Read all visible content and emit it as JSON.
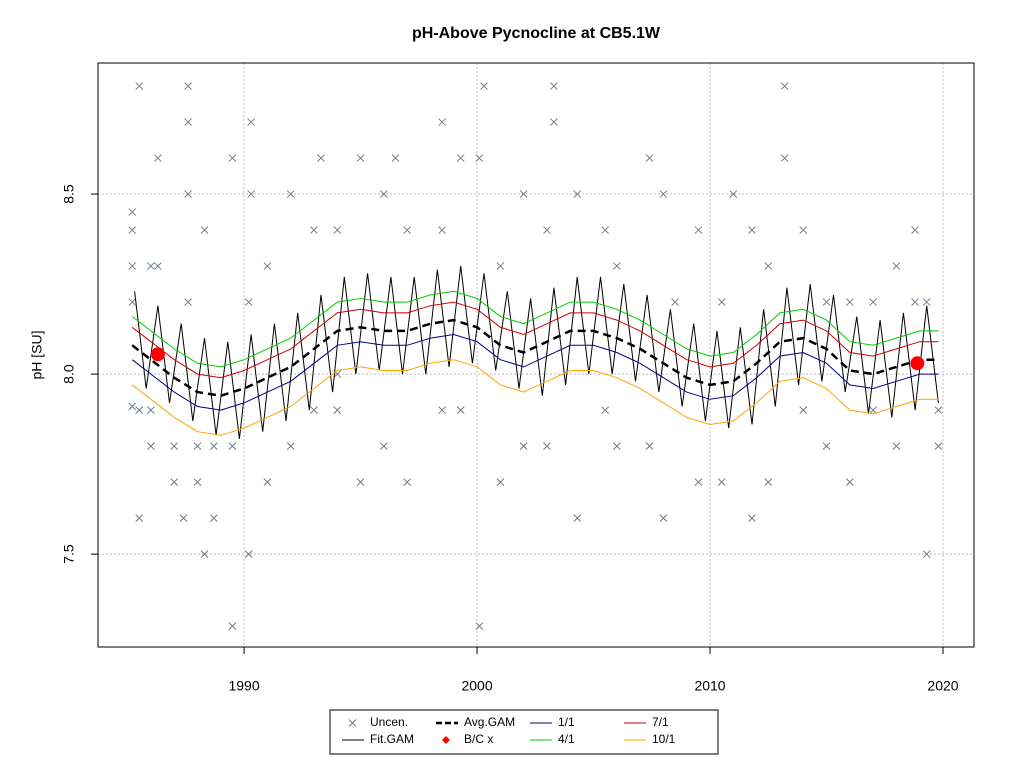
{
  "chart_data": {
    "type": "line",
    "title": "pH-Above Pycnocline at CB5.1W",
    "y_label": "pH [SU]",
    "xlim": [
      1983.73,
      2021.33
    ],
    "ylim": [
      7.242,
      8.864
    ],
    "xticks": [
      1990,
      2000,
      2010,
      2020
    ],
    "yticks": [
      7.5,
      {
        "value": 8,
        "label": "8.0"
      },
      8.5
    ],
    "grid": true,
    "legend": "bottom",
    "series": [
      {
        "name": "Uncen.",
        "color": "#6c7b8b",
        "kind": "points",
        "marker": "x",
        "x": [
          1985.2,
          1985.2,
          1985.2,
          1985.2,
          1985.2,
          1985.5,
          1985.5,
          1985.5,
          1986,
          1986,
          1986,
          1986.3,
          1986.3,
          1987,
          1987,
          1987.4,
          1987.6,
          1987.6,
          1987.6,
          1987.6,
          1988,
          1988,
          1988.3,
          1988.3,
          1988.7,
          1988.7,
          1989.5,
          1989.5,
          1989.5,
          1990.2,
          1990.2,
          1990.3,
          1990.3,
          1991,
          1991,
          1992,
          1992,
          1993,
          1993,
          1993.3,
          1994,
          1994,
          1994,
          1995,
          1995,
          1996,
          1996,
          1996.5,
          1997,
          1997,
          1998.5,
          1998.5,
          1998.5,
          1999.3,
          1999.3,
          2000.1,
          2000.1,
          2000.3,
          2001,
          2001,
          2002,
          2002,
          2003,
          2003,
          2003.3,
          2003.3,
          2004.3,
          2004.3,
          2005.5,
          2005.5,
          2006,
          2006,
          2007.4,
          2007.4,
          2008,
          2008,
          2008.5,
          2009.5,
          2009.5,
          2010.5,
          2010.5,
          2011,
          2011.8,
          2011.8,
          2012.5,
          2012.5,
          2013.2,
          2013.2,
          2014,
          2014,
          2015,
          2015,
          2016,
          2016,
          2017,
          2017,
          2018,
          2018,
          2018.8,
          2018.8,
          2019.3,
          2019.3,
          2019.8,
          2019.8
        ],
        "values": [
          8.45,
          8.4,
          8.3,
          8.2,
          7.91,
          8.8,
          7.6,
          7.9,
          8.3,
          7.8,
          7.9,
          8.6,
          8.3,
          7.7,
          7.8,
          7.6,
          8.8,
          8.7,
          8.5,
          8.2,
          7.7,
          7.8,
          7.5,
          8.4,
          7.6,
          7.8,
          7.3,
          8.6,
          7.8,
          7.5,
          8.2,
          8.7,
          8.5,
          7.7,
          8.3,
          8.5,
          7.8,
          8.4,
          7.9,
          8.6,
          8.4,
          8.0,
          7.9,
          8.6,
          7.7,
          8.5,
          7.8,
          8.6,
          7.7,
          8.4,
          8.7,
          8.4,
          7.9,
          8.6,
          7.9,
          7.3,
          8.6,
          8.8,
          7.7,
          8.3,
          8.5,
          7.8,
          8.4,
          7.8,
          8.8,
          8.7,
          7.6,
          8.5,
          8.4,
          7.9,
          8.3,
          7.8,
          8.6,
          7.8,
          7.6,
          8.5,
          8.2,
          8.4,
          7.7,
          7.7,
          8.2,
          8.5,
          7.6,
          8.4,
          8.3,
          7.7,
          8.8,
          8.6,
          8.4,
          7.9,
          7.8,
          8.2,
          7.7,
          8.2,
          7.9,
          8.2,
          7.8,
          8.3,
          8.4,
          8.2,
          7.5,
          8.2,
          7.8,
          7.9
        ]
      },
      {
        "name": "Fit.GAM",
        "color": "#000000",
        "kind": "line",
        "width": 1,
        "x": [
          1985.3,
          1985.8,
          1986.3,
          1986.8,
          1987.3,
          1987.8,
          1988.3,
          1988.8,
          1989.3,
          1989.8,
          1990.3,
          1990.8,
          1991.3,
          1991.8,
          1992.3,
          1992.8,
          1993.3,
          1993.8,
          1994.3,
          1994.8,
          1995.3,
          1995.8,
          1996.3,
          1996.8,
          1997.3,
          1997.8,
          1998.3,
          1998.8,
          1999.3,
          1999.8,
          2000.3,
          2000.8,
          2001.3,
          2001.8,
          2002.3,
          2002.8,
          2003.3,
          2003.8,
          2004.3,
          2004.8,
          2005.3,
          2005.8,
          2006.3,
          2006.8,
          2007.3,
          2007.8,
          2008.3,
          2008.8,
          2009.3,
          2009.8,
          2010.3,
          2010.8,
          2011.3,
          2011.8,
          2012.3,
          2012.8,
          2013.3,
          2013.8,
          2014.3,
          2014.8,
          2015.3,
          2015.8,
          2016.3,
          2016.8,
          2017.3,
          2017.8,
          2018.3,
          2018.8,
          2019.3,
          2019.8
        ],
        "values": [
          8.23,
          7.96,
          8.19,
          7.92,
          8.14,
          7.87,
          8.1,
          7.83,
          8.09,
          7.82,
          8.11,
          7.84,
          8.14,
          7.87,
          8.17,
          7.9,
          8.22,
          7.95,
          8.27,
          8.0,
          8.28,
          8.01,
          8.27,
          8.0,
          8.27,
          8.0,
          8.29,
          8.02,
          8.3,
          8.03,
          8.28,
          8.01,
          8.23,
          7.96,
          8.21,
          7.94,
          8.24,
          7.97,
          8.27,
          8.0,
          8.27,
          8.0,
          8.25,
          7.98,
          8.22,
          7.95,
          8.18,
          7.91,
          8.14,
          7.87,
          8.12,
          7.85,
          8.13,
          7.86,
          8.18,
          7.91,
          8.24,
          7.97,
          8.25,
          7.98,
          8.22,
          7.95,
          8.16,
          7.89,
          8.15,
          7.88,
          8.17,
          7.9,
          8.19,
          7.92
        ]
      },
      {
        "name": "Avg.GAM",
        "color": "#000000",
        "kind": "line",
        "width": 2.5,
        "dash": true,
        "x": [
          1985.2,
          1986,
          1987,
          1988,
          1989,
          1990,
          1991,
          1992,
          1993,
          1994,
          1995,
          1996,
          1997,
          1998,
          1999,
          2000,
          2001,
          2002,
          2003,
          2004,
          2005,
          2006,
          2007,
          2008,
          2009,
          2010,
          2011,
          2012,
          2013,
          2014,
          2015,
          2016,
          2017,
          2018,
          2019,
          2019.8
        ],
        "values": [
          8.08,
          8.04,
          7.99,
          7.95,
          7.94,
          7.96,
          7.99,
          8.02,
          8.07,
          8.12,
          8.13,
          8.12,
          8.12,
          8.14,
          8.15,
          8.13,
          8.08,
          8.06,
          8.09,
          8.12,
          8.12,
          8.1,
          8.07,
          8.03,
          7.99,
          7.97,
          7.98,
          8.03,
          8.09,
          8.1,
          8.07,
          8.01,
          8.0,
          8.02,
          8.04,
          8.04
        ]
      },
      {
        "name": "B/C x",
        "color": "#ff0000",
        "kind": "points",
        "marker": "circle",
        "x": [
          1986.3,
          2018.9
        ],
        "values": [
          8.055,
          8.03
        ]
      },
      {
        "name": "1/1",
        "color": "#00008b",
        "kind": "line",
        "width": 1,
        "x": [
          1985.2,
          1986,
          1987,
          1988,
          1989,
          1990,
          1991,
          1992,
          1993,
          1994,
          1995,
          1996,
          1997,
          1998,
          1999,
          2000,
          2001,
          2002,
          2003,
          2004,
          2005,
          2006,
          2007,
          2008,
          2009,
          2010,
          2011,
          2012,
          2013,
          2014,
          2015,
          2016,
          2017,
          2018,
          2019,
          2019.8
        ],
        "values": [
          8.04,
          8.0,
          7.95,
          7.91,
          7.9,
          7.92,
          7.95,
          7.98,
          8.03,
          8.08,
          8.09,
          8.08,
          8.08,
          8.1,
          8.11,
          8.09,
          8.04,
          8.02,
          8.05,
          8.08,
          8.08,
          8.06,
          8.03,
          7.99,
          7.95,
          7.93,
          7.94,
          7.99,
          8.05,
          8.06,
          8.03,
          7.97,
          7.96,
          7.98,
          8.0,
          8.0
        ]
      },
      {
        "name": "4/1",
        "color": "#00cd00",
        "kind": "line",
        "width": 1,
        "x": [
          1985.2,
          1986,
          1987,
          1988,
          1989,
          1990,
          1991,
          1992,
          1993,
          1994,
          1995,
          1996,
          1997,
          1998,
          1999,
          2000,
          2001,
          2002,
          2003,
          2004,
          2005,
          2006,
          2007,
          2008,
          2009,
          2010,
          2011,
          2012,
          2013,
          2014,
          2015,
          2016,
          2017,
          2018,
          2019,
          2019.8
        ],
        "values": [
          8.16,
          8.12,
          8.07,
          8.03,
          8.02,
          8.04,
          8.07,
          8.1,
          8.15,
          8.2,
          8.21,
          8.2,
          8.2,
          8.22,
          8.23,
          8.21,
          8.16,
          8.14,
          8.17,
          8.2,
          8.2,
          8.18,
          8.15,
          8.11,
          8.07,
          8.05,
          8.06,
          8.11,
          8.17,
          8.18,
          8.15,
          8.09,
          8.08,
          8.1,
          8.12,
          8.12
        ]
      },
      {
        "name": "7/1",
        "color": "#cd0000",
        "kind": "line",
        "width": 1,
        "x": [
          1985.2,
          1986,
          1987,
          1988,
          1989,
          1990,
          1991,
          1992,
          1993,
          1994,
          1995,
          1996,
          1997,
          1998,
          1999,
          2000,
          2001,
          2002,
          2003,
          2004,
          2005,
          2006,
          2007,
          2008,
          2009,
          2010,
          2011,
          2012,
          2013,
          2014,
          2015,
          2016,
          2017,
          2018,
          2019,
          2019.8
        ],
        "values": [
          8.13,
          8.09,
          8.04,
          8.0,
          7.99,
          8.01,
          8.04,
          8.07,
          8.12,
          8.17,
          8.18,
          8.17,
          8.17,
          8.19,
          8.2,
          8.18,
          8.13,
          8.11,
          8.14,
          8.17,
          8.17,
          8.15,
          8.12,
          8.08,
          8.04,
          8.02,
          8.03,
          8.08,
          8.14,
          8.15,
          8.12,
          8.06,
          8.05,
          8.07,
          8.09,
          8.09
        ]
      },
      {
        "name": "10/1",
        "color": "#ffa500",
        "kind": "line",
        "width": 1,
        "x": [
          1985.2,
          1986,
          1987,
          1988,
          1989,
          1990,
          1991,
          1992,
          1993,
          1994,
          1995,
          1996,
          1997,
          1998,
          1999,
          2000,
          2001,
          2002,
          2003,
          2004,
          2005,
          2006,
          2007,
          2008,
          2009,
          2010,
          2011,
          2012,
          2013,
          2014,
          2015,
          2016,
          2017,
          2018,
          2019,
          2019.8
        ],
        "values": [
          7.97,
          7.93,
          7.88,
          7.84,
          7.83,
          7.85,
          7.88,
          7.91,
          7.96,
          8.01,
          8.02,
          8.01,
          8.01,
          8.03,
          8.04,
          8.02,
          7.97,
          7.95,
          7.98,
          8.01,
          8.01,
          7.99,
          7.96,
          7.92,
          7.88,
          7.86,
          7.87,
          7.92,
          7.98,
          7.99,
          7.96,
          7.9,
          7.89,
          7.91,
          7.93,
          7.93
        ]
      }
    ]
  }
}
